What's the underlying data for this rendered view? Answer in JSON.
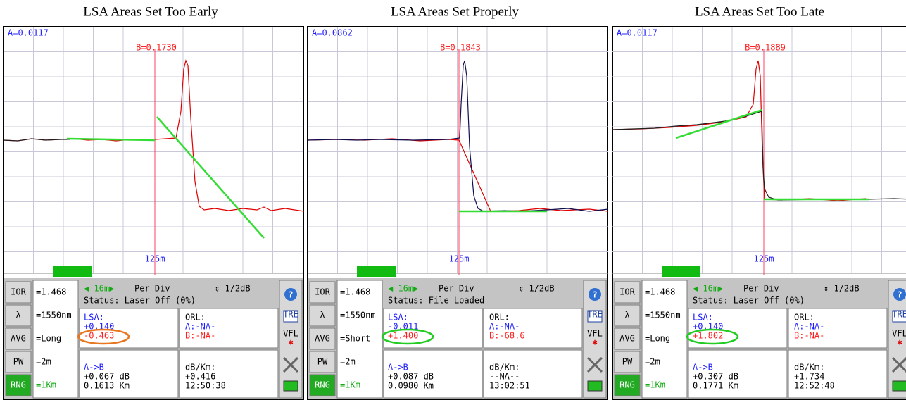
{
  "sidebar_labels": [
    "IOR",
    "λ",
    "AVG",
    "PW",
    "RNG"
  ],
  "icons": {
    "help": "?",
    "trace": "TRE",
    "vfl": "VFL"
  },
  "panels": [
    {
      "title": "LSA Areas Set Too Early",
      "cursor_a": "A=0.0117",
      "cursor_b": "B=0.1730",
      "marker": "125m",
      "settings": [
        "=1.468",
        "=1550nm",
        "=Long",
        "=2m",
        "=1Km"
      ],
      "range": "◀ 16m▶",
      "per_div": "Per Div",
      "scale": "⇕ 1/2dB",
      "status": "Status: Laser Off (0%)",
      "lsa_label": "LSA:",
      "lsa_a": "+0.140",
      "lsa_b": "-0.463",
      "highlight_color": "#e87722",
      "orl_label": "ORL:",
      "orl_a": "A:-NA-",
      "orl_b": "B:-NA-",
      "ab_label": "A->B",
      "ab_loss": "+0.067 dB",
      "ab_dist": "0.1613 Km",
      "dbkm_label": "dB/Km:",
      "dbkm": "+0.416",
      "time": "12:50:38"
    },
    {
      "title": "LSA Areas Set Properly",
      "cursor_a": "A=0.0862",
      "cursor_b": "B=0.1843",
      "marker": "125m",
      "settings": [
        "=1.468",
        "=1550nm",
        "=Short",
        "=2m",
        "=1Km"
      ],
      "range": "◀ 16m▶",
      "per_div": "Per Div",
      "scale": "⇕ 1/2dB",
      "status": "Status: File Loaded",
      "lsa_label": "LSA:",
      "lsa_a": "-0.011",
      "lsa_b": "+1.400",
      "highlight_color": "#22cc22",
      "orl_label": "ORL:",
      "orl_a": "A:-NA-",
      "orl_b": "B:-68.6",
      "ab_label": "A->B",
      "ab_loss": "+0.087 dB",
      "ab_dist": "0.0980 Km",
      "dbkm_label": "dB/Km:",
      "dbkm": "--NA--",
      "time": "13:02:51"
    },
    {
      "title": "LSA Areas Set Too Late",
      "cursor_a": "A=0.0117",
      "cursor_b": "B=0.1889",
      "marker": "125m",
      "settings": [
        "=1.468",
        "=1550nm",
        "=Long",
        "=2m",
        "=1Km"
      ],
      "range": "◀ 16m▶",
      "per_div": "Per Div",
      "scale": "⇕ 1/2dB",
      "status": "Status: Laser Off (0%)",
      "lsa_label": "LSA:",
      "lsa_a": "+0.140",
      "lsa_b": "+1.802",
      "highlight_color": "#22cc22",
      "orl_label": "ORL:",
      "orl_a": "A:-NA-",
      "orl_b": "B:-NA-",
      "ab_label": "A->B",
      "ab_loss": "+0.307 dB",
      "ab_dist": "0.1771 Km",
      "dbkm_label": "dB/Km:",
      "dbkm": "+1.734",
      "time": "12:52:48"
    }
  ]
}
